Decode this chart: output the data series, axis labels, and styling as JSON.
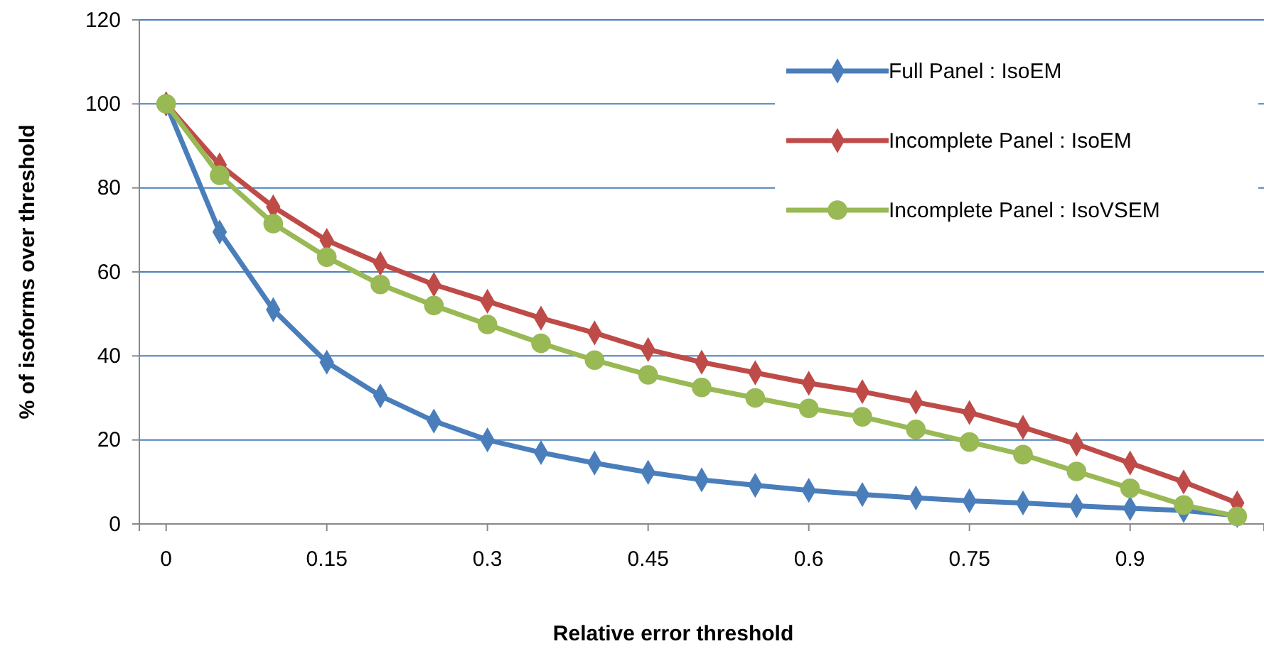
{
  "chart_data": {
    "type": "line",
    "xlabel": "Relative error threshold",
    "ylabel": "% of isoforms over threshold",
    "x": [
      0,
      0.05,
      0.1,
      0.15,
      0.2,
      0.25,
      0.3,
      0.35,
      0.4,
      0.45,
      0.5,
      0.55,
      0.6,
      0.65,
      0.7,
      0.75,
      0.8,
      0.85,
      0.9,
      0.95,
      1.0
    ],
    "xlim": [
      -0.025,
      1.025
    ],
    "xticks": [
      0,
      0.15,
      0.3,
      0.45,
      0.6,
      0.75,
      0.9
    ],
    "ylim": [
      0,
      120
    ],
    "yticks": [
      0,
      20,
      40,
      60,
      80,
      100,
      120
    ],
    "grid": "y",
    "legend": "top right",
    "series": [
      {
        "name": "Full Panel : IsoEM",
        "color": "#4a7ebb",
        "marker": "diamond",
        "values": [
          100,
          69.5,
          51,
          38.5,
          30.5,
          24.5,
          20,
          17,
          14.5,
          12.3,
          10.5,
          9.2,
          8,
          7,
          6.2,
          5.5,
          5,
          4.3,
          3.7,
          3.2,
          2
        ]
      },
      {
        "name": "Incomplete Panel : IsoEM",
        "color": "#be4b48",
        "marker": "diamond",
        "values": [
          100,
          85.5,
          75.5,
          67.5,
          62,
          57,
          53,
          49,
          45.5,
          41.5,
          38.5,
          36,
          33.5,
          31.5,
          29,
          26.5,
          23,
          19,
          14.5,
          10,
          5
        ]
      },
      {
        "name": "Incomplete Panel : IsoVSEM",
        "color": "#98b954",
        "marker": "circle",
        "values": [
          100,
          83,
          71.5,
          63.5,
          57,
          52,
          47.5,
          43,
          39,
          35.5,
          32.5,
          30,
          27.5,
          25.5,
          22.5,
          19.5,
          16.5,
          12.5,
          8.5,
          4.5,
          1.8
        ]
      }
    ]
  }
}
